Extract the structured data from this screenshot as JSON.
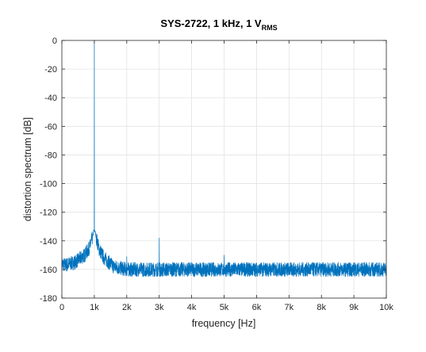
{
  "chart_data": {
    "type": "line",
    "title": "SYS-2722, 1 kHz, 1 V",
    "title_subscript": "RMS",
    "xlabel": "frequency [Hz]",
    "ylabel": "distortion spectrum [dB]",
    "xlim": [
      0,
      10000
    ],
    "ylim": [
      -180,
      0
    ],
    "grid": true,
    "x_ticks": [
      0,
      1000,
      2000,
      3000,
      4000,
      5000,
      6000,
      7000,
      8000,
      9000,
      10000
    ],
    "x_tick_labels": [
      "0",
      "1k",
      "2k",
      "3k",
      "4k",
      "5k",
      "6k",
      "7k",
      "8k",
      "9k",
      "10k"
    ],
    "y_ticks": [
      0,
      -20,
      -40,
      -60,
      -80,
      -100,
      -120,
      -140,
      -160,
      -180
    ],
    "y_tick_labels": [
      "0",
      "-20",
      "-40",
      "-60",
      "-80",
      "-100",
      "-120",
      "-140",
      "-160",
      "-180"
    ],
    "colors": {
      "series": "#0072bd",
      "grid": "#e3e3e3",
      "axis": "#262626"
    },
    "series": [
      {
        "noise_floor_db": -160,
        "noise_spread_db": 5,
        "fundamental": {
          "x": 1000,
          "y": 0
        },
        "skirt": [
          {
            "x": 0,
            "y": -156
          },
          {
            "x": 100,
            "y": -157
          },
          {
            "x": 400,
            "y": -155
          },
          {
            "x": 700,
            "y": -150
          },
          {
            "x": 850,
            "y": -145
          },
          {
            "x": 950,
            "y": -137
          },
          {
            "x": 980,
            "y": -133
          },
          {
            "x": 1000,
            "y": 0
          },
          {
            "x": 1020,
            "y": -133
          },
          {
            "x": 1050,
            "y": -137
          },
          {
            "x": 1150,
            "y": -146
          },
          {
            "x": 1300,
            "y": -152
          },
          {
            "x": 1600,
            "y": -158
          },
          {
            "x": 2000,
            "y": -160
          }
        ],
        "spurs": [
          {
            "x": 2000,
            "y": -151
          },
          {
            "x": 3000,
            "y": -138
          },
          {
            "x": 5000,
            "y": -150
          }
        ]
      }
    ]
  }
}
